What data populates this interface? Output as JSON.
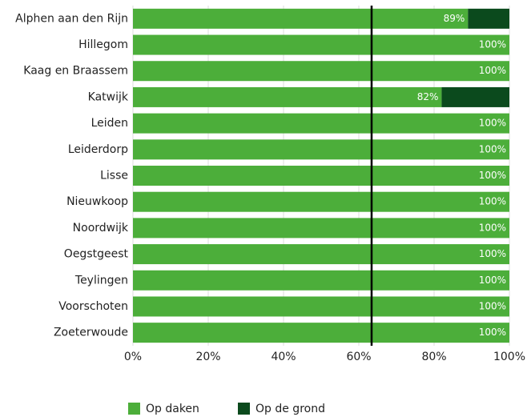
{
  "chart_data": {
    "type": "stacked-barh",
    "categories": [
      "Alphen aan den Rijn",
      "Hillegom",
      "Kaag en Braassem",
      "Katwijk",
      "Leiden",
      "Leiderdorp",
      "Lisse",
      "Nieuwkoop",
      "Noordwijk",
      "Oegstgeest",
      "Teylingen",
      "Voorschoten",
      "Zoeterwoude"
    ],
    "series": [
      {
        "name": "Op daken",
        "color": "#4cae3a",
        "values": [
          89,
          100,
          100,
          82,
          100,
          100,
          100,
          100,
          100,
          100,
          100,
          100,
          100
        ],
        "value_labels": [
          "89%",
          "100%",
          "100%",
          "82%",
          "100%",
          "100%",
          "100%",
          "100%",
          "100%",
          "100%",
          "100%",
          "100%",
          "100%"
        ]
      },
      {
        "name": "Op de grond",
        "color": "#0b4a1d",
        "values": [
          11,
          0,
          0,
          18,
          0,
          0,
          0,
          0,
          0,
          0,
          0,
          0,
          0
        ]
      }
    ],
    "xlim": [
      0,
      100
    ],
    "xticks": [
      {
        "value": 0,
        "label": "0%"
      },
      {
        "value": 20,
        "label": "20%"
      },
      {
        "value": 40,
        "label": "40%"
      },
      {
        "value": 60,
        "label": "60%"
      },
      {
        "value": 80,
        "label": "80%"
      },
      {
        "value": 100,
        "label": "100%"
      }
    ],
    "reference_line": 63.4,
    "grid": true,
    "legend": "bottom"
  }
}
